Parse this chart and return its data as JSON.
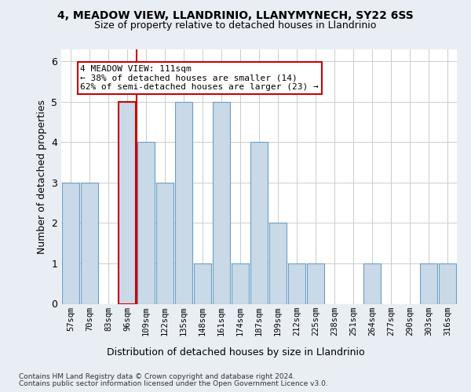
{
  "title": "4, MEADOW VIEW, LLANDRINIO, LLANYMYNECH, SY22 6SS",
  "subtitle": "Size of property relative to detached houses in Llandrinio",
  "xlabel": "Distribution of detached houses by size in Llandrinio",
  "ylabel": "Number of detached properties",
  "categories": [
    "57sqm",
    "70sqm",
    "83sqm",
    "96sqm",
    "109sqm",
    "122sqm",
    "135sqm",
    "148sqm",
    "161sqm",
    "174sqm",
    "187sqm",
    "199sqm",
    "212sqm",
    "225sqm",
    "238sqm",
    "251sqm",
    "264sqm",
    "277sqm",
    "290sqm",
    "303sqm",
    "316sqm"
  ],
  "values": [
    3,
    3,
    0,
    5,
    4,
    3,
    5,
    1,
    5,
    1,
    4,
    2,
    1,
    1,
    0,
    0,
    1,
    0,
    0,
    1,
    1
  ],
  "bar_color": "#c9d9e8",
  "bar_edge_color": "#6a9ec5",
  "highlight_bar_index": 3,
  "highlight_edge_color": "#cc0000",
  "vline_x": 3.5,
  "vline_color": "#cc0000",
  "annotation_lines": [
    "4 MEADOW VIEW: 111sqm",
    "← 38% of detached houses are smaller (14)",
    "62% of semi-detached houses are larger (23) →"
  ],
  "annotation_box_edge_color": "#cc0000",
  "ylim": [
    0,
    6.3
  ],
  "yticks": [
    0,
    1,
    2,
    3,
    4,
    5,
    6
  ],
  "footnote1": "Contains HM Land Registry data © Crown copyright and database right 2024.",
  "footnote2": "Contains public sector information licensed under the Open Government Licence v3.0.",
  "background_color": "#e8eef4",
  "plot_background_color": "#ffffff"
}
